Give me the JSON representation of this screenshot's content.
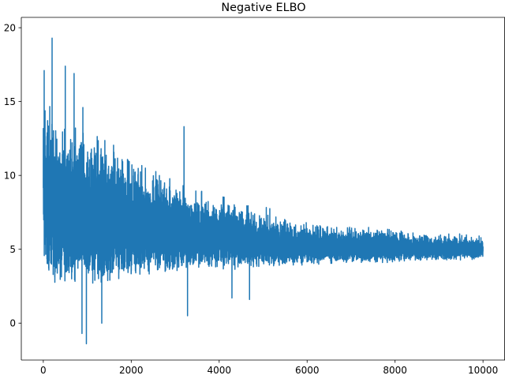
{
  "chart_data": {
    "type": "line",
    "title": "Negative ELBO",
    "xlabel": "",
    "ylabel": "",
    "xlim": [
      -500,
      10500
    ],
    "ylim": [
      -2.5,
      20.7
    ],
    "x_ticks": [
      0,
      2000,
      4000,
      6000,
      8000,
      10000
    ],
    "y_ticks": [
      0,
      5,
      10,
      15,
      20
    ],
    "grid": false,
    "legend": "none",
    "series": [
      {
        "color": "#1f77b4",
        "x_start": 0,
        "x_end": 10000,
        "n_points": 10000,
        "envelope_x": [
          0,
          200,
          500,
          1000,
          1500,
          2000,
          2500,
          3000,
          3500,
          4000,
          5000,
          6000,
          7000,
          8000,
          9000,
          10000
        ],
        "envelope_low": [
          3.0,
          2.7,
          2.5,
          2.2,
          2.5,
          2.8,
          3.0,
          3.2,
          3.4,
          3.5,
          3.7,
          3.9,
          4.0,
          4.1,
          4.2,
          4.3
        ],
        "envelope_high": [
          17.0,
          15.0,
          14.5,
          14.0,
          13.5,
          12.0,
          11.0,
          10.5,
          9.5,
          9.0,
          8.0,
          7.0,
          6.8,
          6.6,
          6.2,
          6.0
        ],
        "spikes": [
          {
            "x": 20,
            "y": 17.1
          },
          {
            "x": 200,
            "y": 19.3
          },
          {
            "x": 500,
            "y": 17.4
          },
          {
            "x": 700,
            "y": 16.9
          },
          {
            "x": 900,
            "y": 14.6
          },
          {
            "x": 880,
            "y": -0.7
          },
          {
            "x": 980,
            "y": -1.4
          },
          {
            "x": 1330,
            "y": 0.0
          },
          {
            "x": 3200,
            "y": 13.3
          },
          {
            "x": 3280,
            "y": 0.5
          },
          {
            "x": 4290,
            "y": 1.7
          },
          {
            "x": 4690,
            "y": 1.6
          }
        ]
      }
    ]
  }
}
